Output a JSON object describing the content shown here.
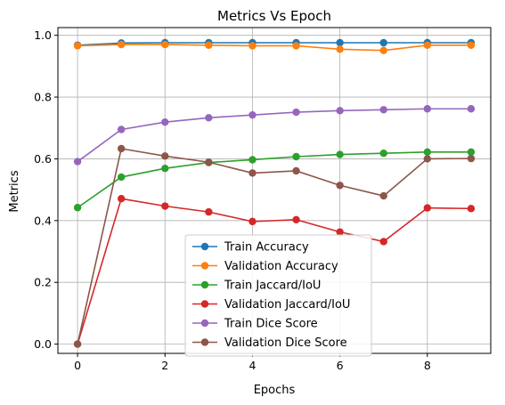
{
  "chart_data": {
    "type": "line",
    "title": "Metrics Vs Epoch",
    "xlabel": "Epochs",
    "ylabel": "Metrics",
    "x": [
      0,
      1,
      2,
      3,
      4,
      5,
      6,
      7,
      8,
      9
    ],
    "xlim": [
      -0.45,
      9.45
    ],
    "ylim": [
      -0.03,
      1.025
    ],
    "xticks": [
      0,
      2,
      4,
      6,
      8
    ],
    "yticks": [
      0.0,
      0.2,
      0.4,
      0.6,
      0.8,
      1.0
    ],
    "xtick_labels": [
      "0",
      "2",
      "4",
      "6",
      "8"
    ],
    "ytick_labels": [
      "0.0",
      "0.2",
      "0.4",
      "0.6",
      "0.8",
      "1.0"
    ],
    "grid": true,
    "legend_position": "lower-center",
    "series": [
      {
        "name": "Train Accuracy",
        "color": "#1f77b4",
        "values": [
          0.968,
          0.975,
          0.976,
          0.976,
          0.976,
          0.976,
          0.976,
          0.976,
          0.976,
          0.976
        ]
      },
      {
        "name": "Validation Accuracy",
        "color": "#ff7f0e",
        "values": [
          0.966,
          0.97,
          0.97,
          0.968,
          0.966,
          0.966,
          0.955,
          0.951,
          0.968,
          0.968
        ]
      },
      {
        "name": "Train Jaccard/IoU",
        "color": "#2ca02c",
        "values": [
          0.442,
          0.541,
          0.569,
          0.588,
          0.597,
          0.607,
          0.614,
          0.618,
          0.622,
          0.622
        ]
      },
      {
        "name": "Validation Jaccard/IoU",
        "color": "#d62728",
        "values": [
          0.0,
          0.471,
          0.447,
          0.428,
          0.397,
          0.403,
          0.363,
          0.332,
          0.441,
          0.439
        ]
      },
      {
        "name": "Train Dice Score",
        "color": "#9467bd",
        "values": [
          0.591,
          0.695,
          0.719,
          0.733,
          0.742,
          0.751,
          0.756,
          0.759,
          0.762,
          0.762
        ]
      },
      {
        "name": "Validation Dice Score",
        "color": "#8c564b",
        "values": [
          0.0,
          0.633,
          0.609,
          0.589,
          0.554,
          0.561,
          0.514,
          0.48,
          0.6,
          0.601
        ]
      }
    ]
  }
}
